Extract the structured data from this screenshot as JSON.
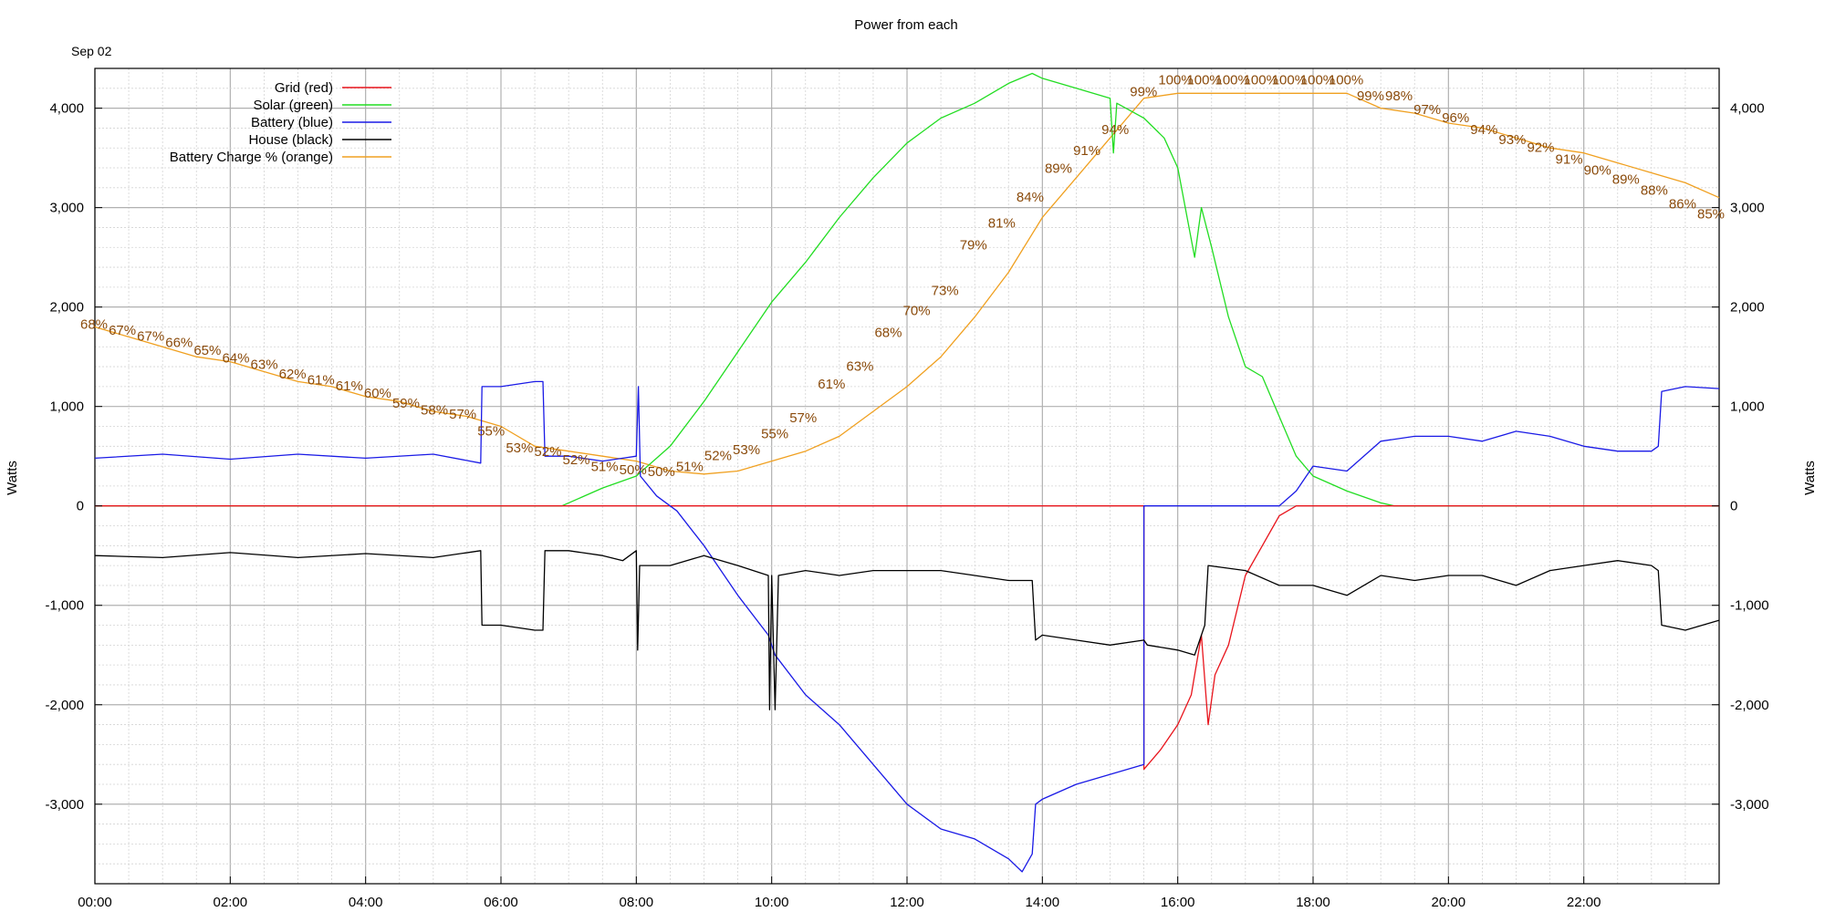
{
  "chart_data": {
    "type": "line",
    "title": "Power from each",
    "date_label": "Sep 02",
    "ylabel_left": "Watts",
    "ylabel_right": "Watts",
    "xlim_hours": [
      0,
      24
    ],
    "ylim": [
      -3800,
      4400
    ],
    "x_ticks": [
      "00:00",
      "02:00",
      "04:00",
      "06:00",
      "08:00",
      "10:00",
      "12:00",
      "14:00",
      "16:00",
      "18:00",
      "20:00",
      "22:00"
    ],
    "y_ticks": [
      4000,
      3000,
      2000,
      1000,
      0,
      -1000,
      -2000,
      -3000
    ],
    "y_tick_labels": [
      "4,000",
      "3,000",
      "2,000",
      "1,000",
      "0",
      "-1,000",
      "-2,000",
      "-3,000"
    ],
    "grid": true,
    "legend_position": "top-left",
    "legend": [
      {
        "label": "Grid (red)",
        "color": "#e8141c"
      },
      {
        "label": "Solar (green)",
        "color": "#22dd22"
      },
      {
        "label": "Battery (blue)",
        "color": "#1a1ae6"
      },
      {
        "label": "House (black)",
        "color": "#000000"
      },
      {
        "label": "Battery Charge % (orange)",
        "color": "#f0a020"
      }
    ],
    "series": [
      {
        "name": "Grid (red)",
        "color": "#e8141c",
        "points": [
          [
            0,
            0
          ],
          [
            15.5,
            0
          ],
          [
            15.5,
            -2650
          ],
          [
            15.75,
            -2450
          ],
          [
            16.0,
            -2200
          ],
          [
            16.2,
            -1900
          ],
          [
            16.35,
            -1300
          ],
          [
            16.45,
            -2200
          ],
          [
            16.55,
            -1700
          ],
          [
            16.75,
            -1400
          ],
          [
            17.0,
            -700
          ],
          [
            17.25,
            -400
          ],
          [
            17.5,
            -100
          ],
          [
            17.75,
            0
          ],
          [
            24,
            0
          ]
        ]
      },
      {
        "name": "Solar (green)",
        "color": "#22dd22",
        "points": [
          [
            0,
            0
          ],
          [
            6.9,
            0
          ],
          [
            7.5,
            180
          ],
          [
            8.0,
            300
          ],
          [
            8.5,
            600
          ],
          [
            9.0,
            1050
          ],
          [
            9.5,
            1550
          ],
          [
            10.0,
            2050
          ],
          [
            10.5,
            2450
          ],
          [
            11.0,
            2900
          ],
          [
            11.5,
            3300
          ],
          [
            12.0,
            3650
          ],
          [
            12.5,
            3900
          ],
          [
            13.0,
            4050
          ],
          [
            13.5,
            4250
          ],
          [
            13.85,
            4350
          ],
          [
            14.0,
            4300
          ],
          [
            14.5,
            4200
          ],
          [
            15.0,
            4100
          ],
          [
            15.05,
            3550
          ],
          [
            15.1,
            4050
          ],
          [
            15.5,
            3900
          ],
          [
            15.8,
            3700
          ],
          [
            16.0,
            3400
          ],
          [
            16.25,
            2500
          ],
          [
            16.35,
            3000
          ],
          [
            16.5,
            2600
          ],
          [
            16.75,
            1900
          ],
          [
            17.0,
            1400
          ],
          [
            17.25,
            1300
          ],
          [
            17.5,
            900
          ],
          [
            17.75,
            500
          ],
          [
            18.0,
            300
          ],
          [
            18.5,
            150
          ],
          [
            19.0,
            30
          ],
          [
            19.2,
            0
          ],
          [
            24,
            0
          ]
        ]
      },
      {
        "name": "Battery (blue)",
        "color": "#1a1ae6",
        "points": [
          [
            0,
            480
          ],
          [
            1.0,
            520
          ],
          [
            2.0,
            470
          ],
          [
            3.0,
            520
          ],
          [
            4.0,
            480
          ],
          [
            5.0,
            520
          ],
          [
            5.7,
            430
          ],
          [
            5.72,
            1200
          ],
          [
            6.0,
            1200
          ],
          [
            6.5,
            1250
          ],
          [
            6.62,
            1250
          ],
          [
            6.65,
            500
          ],
          [
            7.0,
            500
          ],
          [
            7.5,
            450
          ],
          [
            7.8,
            480
          ],
          [
            8.0,
            500
          ],
          [
            8.03,
            1200
          ],
          [
            8.06,
            300
          ],
          [
            8.3,
            100
          ],
          [
            8.6,
            -50
          ],
          [
            9.0,
            -400
          ],
          [
            9.5,
            -900
          ],
          [
            9.95,
            -1300
          ],
          [
            10.05,
            -1500
          ],
          [
            10.5,
            -1900
          ],
          [
            11.0,
            -2200
          ],
          [
            11.5,
            -2600
          ],
          [
            12.0,
            -3000
          ],
          [
            12.5,
            -3250
          ],
          [
            13.0,
            -3350
          ],
          [
            13.5,
            -3550
          ],
          [
            13.7,
            -3680
          ],
          [
            13.85,
            -3500
          ],
          [
            13.9,
            -3000
          ],
          [
            14.0,
            -2950
          ],
          [
            14.5,
            -2800
          ],
          [
            15.0,
            -2700
          ],
          [
            15.5,
            -2600
          ],
          [
            15.5,
            0
          ],
          [
            17.5,
            0
          ],
          [
            17.75,
            150
          ],
          [
            18.0,
            400
          ],
          [
            18.5,
            350
          ],
          [
            19.0,
            650
          ],
          [
            19.5,
            700
          ],
          [
            20.0,
            700
          ],
          [
            20.5,
            650
          ],
          [
            21.0,
            750
          ],
          [
            21.5,
            700
          ],
          [
            22.0,
            600
          ],
          [
            22.5,
            550
          ],
          [
            23.0,
            550
          ],
          [
            23.1,
            600
          ],
          [
            23.15,
            1150
          ],
          [
            23.5,
            1200
          ],
          [
            24.0,
            1180
          ]
        ]
      },
      {
        "name": "House (black)",
        "color": "#000000",
        "points": [
          [
            0,
            -500
          ],
          [
            1.0,
            -520
          ],
          [
            2.0,
            -470
          ],
          [
            3.0,
            -520
          ],
          [
            4.0,
            -480
          ],
          [
            5.0,
            -520
          ],
          [
            5.7,
            -450
          ],
          [
            5.72,
            -1200
          ],
          [
            6.0,
            -1200
          ],
          [
            6.5,
            -1250
          ],
          [
            6.62,
            -1250
          ],
          [
            6.65,
            -450
          ],
          [
            7.0,
            -450
          ],
          [
            7.5,
            -500
          ],
          [
            7.8,
            -550
          ],
          [
            8.0,
            -450
          ],
          [
            8.02,
            -1450
          ],
          [
            8.05,
            -600
          ],
          [
            8.5,
            -600
          ],
          [
            9.0,
            -500
          ],
          [
            9.5,
            -600
          ],
          [
            9.95,
            -700
          ],
          [
            9.97,
            -2050
          ],
          [
            10.0,
            -700
          ],
          [
            10.05,
            -2050
          ],
          [
            10.1,
            -700
          ],
          [
            10.5,
            -650
          ],
          [
            11.0,
            -700
          ],
          [
            11.5,
            -650
          ],
          [
            12.0,
            -650
          ],
          [
            12.5,
            -650
          ],
          [
            13.0,
            -700
          ],
          [
            13.5,
            -750
          ],
          [
            13.85,
            -750
          ],
          [
            13.9,
            -1350
          ],
          [
            14.0,
            -1300
          ],
          [
            14.5,
            -1350
          ],
          [
            15.0,
            -1400
          ],
          [
            15.5,
            -1350
          ],
          [
            15.55,
            -1400
          ],
          [
            16.0,
            -1450
          ],
          [
            16.25,
            -1500
          ],
          [
            16.4,
            -1200
          ],
          [
            16.45,
            -600
          ],
          [
            17.0,
            -650
          ],
          [
            17.5,
            -800
          ],
          [
            18.0,
            -800
          ],
          [
            18.5,
            -900
          ],
          [
            19.0,
            -700
          ],
          [
            19.5,
            -750
          ],
          [
            20.0,
            -700
          ],
          [
            20.5,
            -700
          ],
          [
            21.0,
            -800
          ],
          [
            21.5,
            -650
          ],
          [
            22.0,
            -600
          ],
          [
            22.5,
            -550
          ],
          [
            23.0,
            -600
          ],
          [
            23.1,
            -650
          ],
          [
            23.15,
            -1200
          ],
          [
            23.5,
            -1250
          ],
          [
            24.0,
            -1150
          ]
        ]
      },
      {
        "name": "Battery Charge % (orange)",
        "color": "#f0a020",
        "points": [
          [
            0,
            1800
          ],
          [
            0.5,
            1700
          ],
          [
            1.0,
            1600
          ],
          [
            1.5,
            1500
          ],
          [
            2.0,
            1450
          ],
          [
            2.5,
            1350
          ],
          [
            3.0,
            1250
          ],
          [
            3.5,
            1200
          ],
          [
            4.0,
            1100
          ],
          [
            4.5,
            1050
          ],
          [
            5.0,
            950
          ],
          [
            5.5,
            900
          ],
          [
            6.0,
            800
          ],
          [
            6.5,
            600
          ],
          [
            7.0,
            550
          ],
          [
            7.5,
            500
          ],
          [
            8.0,
            450
          ],
          [
            8.5,
            350
          ],
          [
            9.0,
            320
          ],
          [
            9.5,
            350
          ],
          [
            10.0,
            450
          ],
          [
            10.5,
            550
          ],
          [
            11.0,
            700
          ],
          [
            11.5,
            950
          ],
          [
            12.0,
            1200
          ],
          [
            12.5,
            1500
          ],
          [
            13.0,
            1900
          ],
          [
            13.5,
            2350
          ],
          [
            14.0,
            2900
          ],
          [
            14.5,
            3300
          ],
          [
            15.0,
            3700
          ],
          [
            15.5,
            4100
          ],
          [
            16.0,
            4150
          ],
          [
            16.5,
            4150
          ],
          [
            17.0,
            4150
          ],
          [
            17.5,
            4150
          ],
          [
            18.0,
            4150
          ],
          [
            18.5,
            4150
          ],
          [
            19.0,
            4000
          ],
          [
            19.5,
            3950
          ],
          [
            20.0,
            3850
          ],
          [
            20.5,
            3800
          ],
          [
            21.0,
            3700
          ],
          [
            21.5,
            3600
          ],
          [
            22.0,
            3550
          ],
          [
            22.5,
            3450
          ],
          [
            23.0,
            3350
          ],
          [
            23.5,
            3250
          ],
          [
            24.0,
            3100
          ]
        ]
      }
    ],
    "charge_labels": [
      {
        "x": 0.0,
        "y": 1780,
        "label": "68%"
      },
      {
        "x": 0.45,
        "y": 1720,
        "label": "67%"
      },
      {
        "x": 0.9,
        "y": 1660,
        "label": "67%"
      },
      {
        "x": 1.35,
        "y": 1600,
        "label": "66%"
      },
      {
        "x": 1.8,
        "y": 1520,
        "label": "65%"
      },
      {
        "x": 2.25,
        "y": 1440,
        "label": "64%"
      },
      {
        "x": 2.7,
        "y": 1380,
        "label": "63%"
      },
      {
        "x": 3.15,
        "y": 1280,
        "label": "62%"
      },
      {
        "x": 3.6,
        "y": 1220,
        "label": "61%"
      },
      {
        "x": 4.05,
        "y": 1160,
        "label": "61%"
      },
      {
        "x": 4.5,
        "y": 1090,
        "label": "60%"
      },
      {
        "x": 4.95,
        "y": 990,
        "label": "59%"
      },
      {
        "x": 5.4,
        "y": 920,
        "label": "58%"
      },
      {
        "x": 5.85,
        "y": 880,
        "label": "57%"
      },
      {
        "x": 6.3,
        "y": 710,
        "label": "55%"
      },
      {
        "x": 6.75,
        "y": 540,
        "label": "53%"
      },
      {
        "x": 7.2,
        "y": 500,
        "label": "52%"
      },
      {
        "x": 7.65,
        "y": 420,
        "label": "52%"
      },
      {
        "x": 8.1,
        "y": 350,
        "label": "51%"
      },
      {
        "x": 8.55,
        "y": 320,
        "label": "50%"
      },
      {
        "x": 9.0,
        "y": 300,
        "label": "50%"
      },
      {
        "x": 9.45,
        "y": 350,
        "label": "51%"
      },
      {
        "x": 9.9,
        "y": 460,
        "label": "52%"
      },
      {
        "x": 10.35,
        "y": 520,
        "label": "53%"
      },
      {
        "x": 10.8,
        "y": 680,
        "label": "55%"
      },
      {
        "x": 11.25,
        "y": 840,
        "label": "57%"
      },
      {
        "x": 11.7,
        "y": 1180,
        "label": "61%"
      },
      {
        "x": 12.15,
        "y": 1360,
        "label": "63%"
      },
      {
        "x": 12.6,
        "y": 1700,
        "label": "68%"
      },
      {
        "x": 13.05,
        "y": 1920,
        "label": "70%"
      },
      {
        "x": 13.5,
        "y": 2120,
        "label": "73%"
      },
      {
        "x": 13.95,
        "y": 2580,
        "label": "79%"
      },
      {
        "x": 14.4,
        "y": 2800,
        "label": "81%"
      },
      {
        "x": 14.85,
        "y": 3060,
        "label": "84%"
      },
      {
        "x": 15.3,
        "y": 3350,
        "label": "89%"
      },
      {
        "x": 15.75,
        "y": 3530,
        "label": "91%"
      },
      {
        "x": 16.1,
        "y": 3740,
        "label": "94%"
      },
      {
        "x": 16.45,
        "y": 4120,
        "label": "99%"
      },
      {
        "x": 16.85,
        "y": 4240,
        "label": "100%"
      },
      {
        "x": 17.3,
        "y": 4240,
        "label": "100%"
      },
      {
        "x": 17.75,
        "y": 4240,
        "label": "100%"
      },
      {
        "x": 18.2,
        "y": 4240,
        "label": "100%"
      },
      {
        "x": 18.65,
        "y": 4240,
        "label": "100%"
      },
      {
        "x": 19.1,
        "y": 4240,
        "label": "100%"
      },
      {
        "x": 19.55,
        "y": 4240,
        "label": "100%"
      },
      {
        "x": 20.1,
        "y": 4080,
        "label": "99%"
      },
      {
        "x": 20.32,
        "y": 4080,
        "label": "98%"
      },
      {
        "x": 20.85,
        "y": 3940,
        "label": "97%"
      },
      {
        "x": 21.3,
        "y": 3860,
        "label": "96%"
      },
      {
        "x": 21.75,
        "y": 3740,
        "label": "94%"
      },
      {
        "x": 22.2,
        "y": 3640,
        "label": "93%"
      },
      {
        "x": 22.65,
        "y": 3560,
        "label": "92%"
      },
      {
        "x": 23.1,
        "y": 3440,
        "label": "91%"
      },
      {
        "x": 23.55,
        "y": 3330,
        "label": "90%"
      },
      {
        "x": 24.0,
        "y": 3240,
        "label": "89%"
      },
      {
        "x": 24.45,
        "y": 3130,
        "label": "88%"
      },
      {
        "x": 24.9,
        "y": 2990,
        "label": "86%"
      },
      {
        "x": 25.35,
        "y": 2890,
        "label": "85%"
      }
    ]
  }
}
